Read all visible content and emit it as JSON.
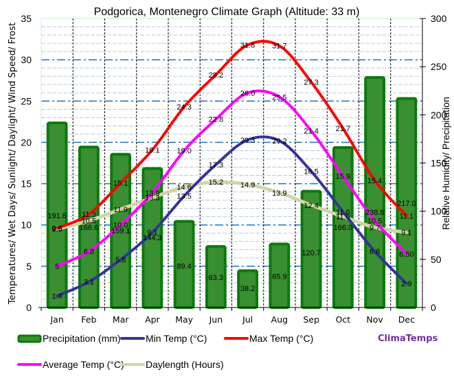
{
  "chart_data": {
    "type": "bar+line",
    "title": "Podgorica, Montenegro Climate Graph (Altitude: 33 m)",
    "categories": [
      "Jan",
      "Feb",
      "Mar",
      "Apr",
      "May",
      "Jun",
      "Jul",
      "Aug",
      "Sep",
      "Oct",
      "Nov",
      "Dec"
    ],
    "ylabel_left": "Temperatures/ Wet Days/ Sunlight/ Daylight/ Wind Speed/ Frost",
    "ylabel_right": "Relative Humidity/ Precipitation",
    "ylim_left": [
      0,
      35
    ],
    "ylim_right": [
      0,
      300
    ],
    "yticks_left": [
      "0",
      "5",
      "10",
      "15",
      "20",
      "25",
      "30",
      "35"
    ],
    "yticks_right": [
      "0",
      "50",
      "100",
      "150",
      "200",
      "250",
      "300"
    ],
    "grid": true,
    "legend_position": "bottom",
    "series": [
      {
        "name": "Precipitation (mm)",
        "type": "bar",
        "axis": "right",
        "color": "#3a8f32",
        "border": "#0b7a0b",
        "values": [
          191.6,
          166.6,
          159.1,
          144.3,
          89.4,
          63.3,
          38.2,
          65.9,
          120.7,
          166.0,
          238.8,
          217.0
        ],
        "labels": [
          "191.6",
          "166.6",
          "159.1",
          "144.3",
          "89.4",
          "63.3",
          "38.2",
          "65.9",
          "120.7",
          "166.0",
          "238.8",
          "217.0"
        ]
      },
      {
        "name": "Min Temp (°C)",
        "type": "line",
        "axis": "left",
        "color": "#333399",
        "values": [
          1.4,
          3.1,
          5.8,
          9.1,
          13.5,
          17.3,
          20.3,
          20.2,
          16.5,
          11.6,
          6.8,
          2.9
        ],
        "labels": [
          "1.4",
          "3.1",
          "5.8",
          "9.1",
          "13.5",
          "17.3",
          "20.3",
          "20.2",
          "16.5",
          "11.6",
          "6.8",
          "2.9"
        ]
      },
      {
        "name": "Max Temp (°C)",
        "type": "line",
        "axis": "left",
        "color": "#ff0000",
        "values": [
          9.6,
          11.3,
          15.1,
          19.1,
          24.3,
          28.2,
          31.8,
          31.7,
          27.3,
          21.7,
          15.4,
          11.1
        ],
        "labels": [
          "9.6",
          "11.3",
          "15.1",
          "19.1",
          "24.3",
          "28.2",
          "31.8",
          "31.7",
          "27.3",
          "21.7",
          "15.4",
          "11.1"
        ]
      },
      {
        "name": "Average Temp (°C)",
        "type": "line",
        "axis": "left",
        "color": "#ff00ff",
        "values": [
          5,
          6.8,
          10.0,
          13.9,
          19.0,
          22.8,
          26.0,
          25.5,
          21.4,
          15.9,
          10.5,
          6.5
        ],
        "labels": [
          "5",
          "6.8",
          "10.0",
          "13.9",
          "19.0",
          "22.8",
          "26.0",
          "25.5",
          "21.4",
          "15.9",
          "10.5",
          "6.50"
        ]
      },
      {
        "name": "Daylength (Hours)",
        "type": "line",
        "axis": "left",
        "color": "#cfd6a6",
        "values": [
          9.5,
          10.5,
          11.9,
          13.3,
          14.6,
          15.2,
          14.9,
          13.9,
          12.4,
          11.0,
          9.7,
          9.1
        ],
        "labels": [
          "9.5",
          "10.5",
          "11.9",
          "13.3",
          "14.6",
          "15.2",
          "14.9",
          "13.9",
          "12.4",
          "11.0",
          "9.7",
          "9.1"
        ]
      }
    ],
    "legend": [
      {
        "label": "Precipitation (mm)",
        "series": 0
      },
      {
        "label": "Min Temp (°C)",
        "series": 1
      },
      {
        "label": "Max Temp (°C)",
        "series": 2
      },
      {
        "label": "Average Temp (°C)",
        "series": 3
      },
      {
        "label": "Daylength (Hours)",
        "series": 4
      }
    ],
    "brand": "ClimaTemps"
  }
}
